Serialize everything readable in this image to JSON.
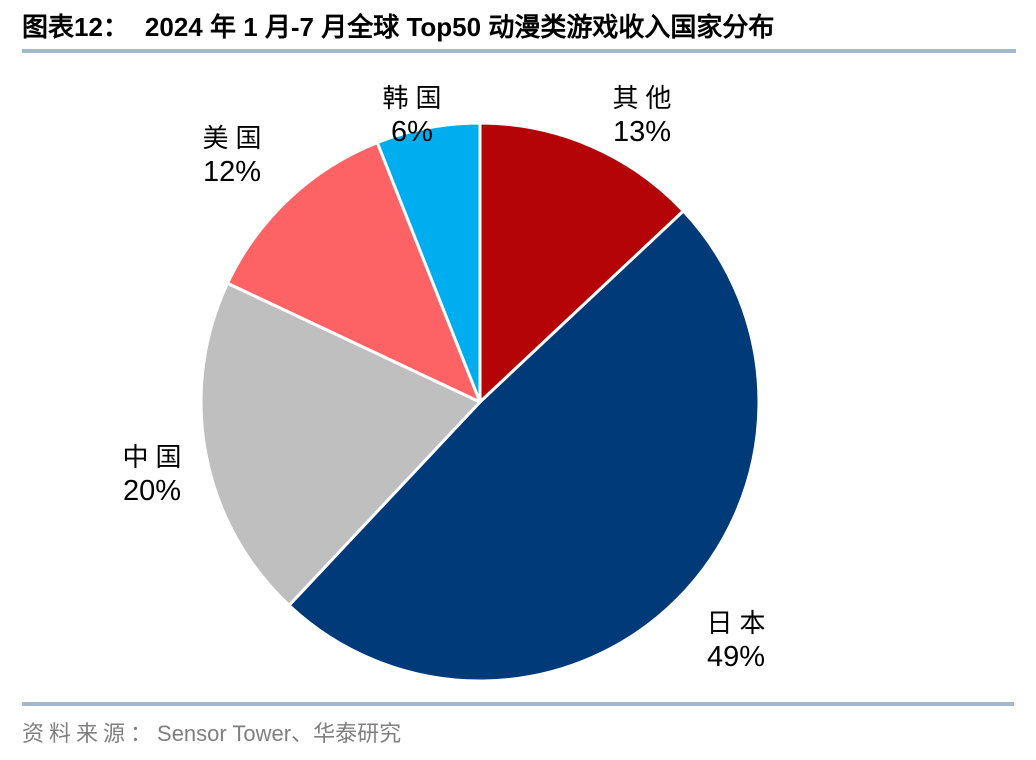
{
  "header": {
    "figure_label": "图表12：",
    "title": "2024 年 1 月-7 月全球 Top50 动漫类游戏收入国家分布"
  },
  "chart_data": {
    "type": "pie",
    "title": "2024 年 1 月-7 月全球 Top50 动漫类游戏收入国家分布",
    "unit": "%",
    "start_angle_deg": 0,
    "direction": "clockwise",
    "legend": "none",
    "labels_outside": true,
    "slices": [
      {
        "key": "other",
        "label": "其他",
        "value": 13,
        "pct_label": "13%",
        "color": "#b50407"
      },
      {
        "key": "japan",
        "label": "日本",
        "value": 49,
        "pct_label": "49%",
        "color": "#003a78"
      },
      {
        "key": "china",
        "label": "中国",
        "value": 20,
        "pct_label": "20%",
        "color": "#bfbfbf"
      },
      {
        "key": "usa",
        "label": "美国",
        "value": 12,
        "pct_label": "12%",
        "color": "#fd6365"
      },
      {
        "key": "korea",
        "label": "韩国",
        "value": 6,
        "pct_label": "6%",
        "color": "#00aeef"
      }
    ]
  },
  "footer": {
    "source_prefix": "资料来源：",
    "source_body": "Sensor Tower、华泰研究"
  },
  "style": {
    "rule_color": "#a2b8cd",
    "slice_border_color": "#ffffff",
    "source_text_color": "#7f7f7f"
  }
}
